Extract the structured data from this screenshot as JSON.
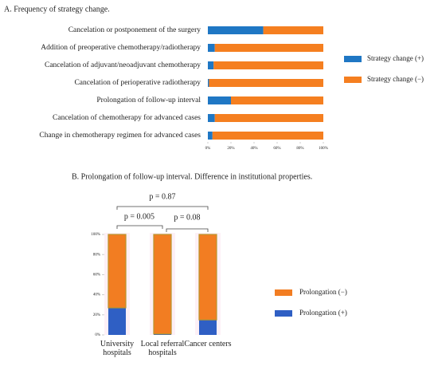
{
  "chart_data": [
    {
      "type": "bar",
      "orientation": "horizontal",
      "stacked": true,
      "title": "A. Frequency of strategy change.",
      "categories": [
        "Cancelation or postponement of the surgery",
        "Addition of preoperative chemotherapy/radiotherapy",
        "Cancelation of adjuvant/neoadjuvant chemotherapy",
        "Cancelation of perioperative radiotherapy",
        "Prolongation of follow-up interval",
        "Cancelation of chemotherapy for advanced cases",
        "Change in chemotherapy regimen for advanced cases"
      ],
      "series": [
        {
          "name": "Strategy change (+)",
          "color": "#1f77c4",
          "values": [
            48,
            6,
            5,
            1,
            20,
            6,
            4
          ]
        },
        {
          "name": "Strategy change (−)",
          "color": "#f57f20",
          "values": [
            52,
            94,
            95,
            99,
            80,
            94,
            96
          ]
        }
      ],
      "xlim": [
        0,
        100
      ],
      "xticks": [
        {
          "value": 0,
          "label": "0%"
        },
        {
          "value": 20,
          "label": "20%"
        },
        {
          "value": 40,
          "label": "40%"
        },
        {
          "value": 60,
          "label": "60%"
        },
        {
          "value": 80,
          "label": "80%"
        },
        {
          "value": 100,
          "label": "100%"
        }
      ],
      "legend": "right"
    },
    {
      "type": "bar",
      "orientation": "vertical",
      "stacked": true,
      "title": "B. Prolongation of follow-up interval. Difference in institutional properties.",
      "categories": [
        "University hospitals",
        "Local referral hospitals",
        "Cancer centers"
      ],
      "series": [
        {
          "name": "Prolongation (+)",
          "color": "#2f5fc4",
          "values": [
            27,
            1,
            15
          ]
        },
        {
          "name": "Prolongation (−)",
          "color": "#f27d22",
          "values": [
            73,
            99,
            85
          ]
        }
      ],
      "ylim": [
        0,
        100
      ],
      "yticks": [
        {
          "value": 0,
          "label": "0%"
        },
        {
          "value": 20,
          "label": "20%"
        },
        {
          "value": 40,
          "label": "40%"
        },
        {
          "value": 60,
          "label": "60%"
        },
        {
          "value": 80,
          "label": "80%"
        },
        {
          "value": 100,
          "label": "100%"
        }
      ],
      "annotations": [
        "p = 0.87",
        "p = 0.005",
        "p = 0.08"
      ],
      "legend": "right"
    }
  ]
}
